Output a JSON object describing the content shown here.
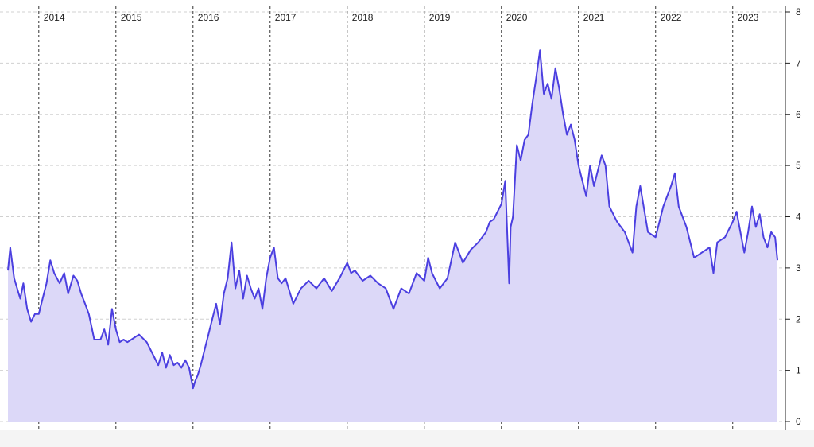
{
  "chart_data": {
    "type": "area",
    "title": "",
    "xlabel": "",
    "ylabel": "",
    "ylim": [
      0,
      8
    ],
    "y_ticks": [
      "0",
      "1",
      "2",
      "3",
      "4",
      "5",
      "6",
      "7",
      "8"
    ],
    "x_tick_labels": [
      "2014",
      "2015",
      "2016",
      "2017",
      "2018",
      "2019",
      "2020",
      "2021",
      "2022",
      "2023"
    ],
    "x_range": [
      2013.6,
      2023.58
    ],
    "grid": "horizontal dashed gridlines; vertical dashed year dividers",
    "axis_position": "right",
    "colors": {
      "line": "#4b3fe0",
      "fill": "#dcd8f8",
      "grid": "#d0d0d0",
      "divider": "#333333"
    },
    "series": [
      {
        "x": [
          2013.6,
          2013.63,
          2013.68,
          2013.72,
          2013.76,
          2013.8,
          2013.85,
          2013.9,
          2013.95,
          2014.0,
          2014.05,
          2014.1,
          2014.15,
          2014.2,
          2014.27,
          2014.33,
          2014.38,
          2014.45,
          2014.5,
          2014.55,
          2014.6,
          2014.65,
          2014.72,
          2014.8,
          2014.85,
          2014.9,
          2014.95,
          2015.0,
          2015.05,
          2015.1,
          2015.15,
          2015.2,
          2015.3,
          2015.4,
          2015.5,
          2015.55,
          2015.6,
          2015.65,
          2015.7,
          2015.75,
          2015.8,
          2015.85,
          2015.9,
          2015.95,
          2016.0,
          2016.03,
          2016.06,
          2016.1,
          2016.15,
          2016.2,
          2016.25,
          2016.3,
          2016.35,
          2016.4,
          2016.45,
          2016.5,
          2016.55,
          2016.6,
          2016.65,
          2016.7,
          2016.75,
          2016.8,
          2016.85,
          2016.9,
          2016.95,
          2017.0,
          2017.05,
          2017.1,
          2017.15,
          2017.2,
          2017.3,
          2017.4,
          2017.5,
          2017.6,
          2017.7,
          2017.8,
          2017.9,
          2018.0,
          2018.05,
          2018.1,
          2018.2,
          2018.3,
          2018.4,
          2018.5,
          2018.55,
          2018.6,
          2018.7,
          2018.8,
          2018.9,
          2019.0,
          2019.05,
          2019.1,
          2019.15,
          2019.2,
          2019.3,
          2019.4,
          2019.5,
          2019.6,
          2019.7,
          2019.8,
          2019.85,
          2019.9,
          2019.95,
          2020.0,
          2020.05,
          2020.1,
          2020.12,
          2020.15,
          2020.2,
          2020.25,
          2020.3,
          2020.35,
          2020.4,
          2020.45,
          2020.5,
          2020.55,
          2020.6,
          2020.65,
          2020.7,
          2020.75,
          2020.8,
          2020.85,
          2020.9,
          2020.95,
          2021.0,
          2021.1,
          2021.15,
          2021.2,
          2021.3,
          2021.35,
          2021.4,
          2021.5,
          2021.6,
          2021.7,
          2021.75,
          2021.8,
          2021.9,
          2022.0,
          2022.1,
          2022.2,
          2022.25,
          2022.3,
          2022.4,
          2022.5,
          2022.6,
          2022.7,
          2022.75,
          2022.8,
          2022.9,
          2023.0,
          2023.05,
          2023.1,
          2023.15,
          2023.2,
          2023.25,
          2023.3,
          2023.35,
          2023.4,
          2023.45,
          2023.5,
          2023.55,
          2023.58
        ],
        "y": [
          2.95,
          3.4,
          2.8,
          2.6,
          2.4,
          2.7,
          2.2,
          1.95,
          2.1,
          2.1,
          2.4,
          2.7,
          3.15,
          2.9,
          2.7,
          2.9,
          2.5,
          2.85,
          2.75,
          2.5,
          2.3,
          2.1,
          1.6,
          1.6,
          1.8,
          1.5,
          2.2,
          1.8,
          1.55,
          1.6,
          1.55,
          1.6,
          1.7,
          1.55,
          1.25,
          1.1,
          1.35,
          1.05,
          1.3,
          1.1,
          1.15,
          1.05,
          1.2,
          1.05,
          0.65,
          0.8,
          0.9,
          1.1,
          1.4,
          1.7,
          2.0,
          2.3,
          1.9,
          2.5,
          2.8,
          3.5,
          2.6,
          2.95,
          2.4,
          2.85,
          2.6,
          2.4,
          2.6,
          2.2,
          2.8,
          3.2,
          3.4,
          2.8,
          2.7,
          2.8,
          2.3,
          2.6,
          2.75,
          2.6,
          2.8,
          2.55,
          2.8,
          3.1,
          2.9,
          2.95,
          2.75,
          2.85,
          2.7,
          2.6,
          2.4,
          2.2,
          2.6,
          2.5,
          2.9,
          2.75,
          3.2,
          2.9,
          2.75,
          2.6,
          2.8,
          3.5,
          3.1,
          3.35,
          3.5,
          3.7,
          3.9,
          3.95,
          4.1,
          4.25,
          4.7,
          2.7,
          3.8,
          4.0,
          5.4,
          5.1,
          5.5,
          5.6,
          6.2,
          6.7,
          7.25,
          6.4,
          6.6,
          6.3,
          6.9,
          6.5,
          6.0,
          5.6,
          5.8,
          5.5,
          5.0,
          4.4,
          5.0,
          4.6,
          5.2,
          5.0,
          4.2,
          3.9,
          3.7,
          3.3,
          4.2,
          4.6,
          3.7,
          3.6,
          4.2,
          4.6,
          4.85,
          4.2,
          3.8,
          3.2,
          3.3,
          3.4,
          2.9,
          3.5,
          3.6,
          3.9,
          4.1,
          3.7,
          3.3,
          3.7,
          4.2,
          3.8,
          4.05,
          3.6,
          3.4,
          3.7,
          3.6,
          3.15
        ]
      }
    ]
  }
}
